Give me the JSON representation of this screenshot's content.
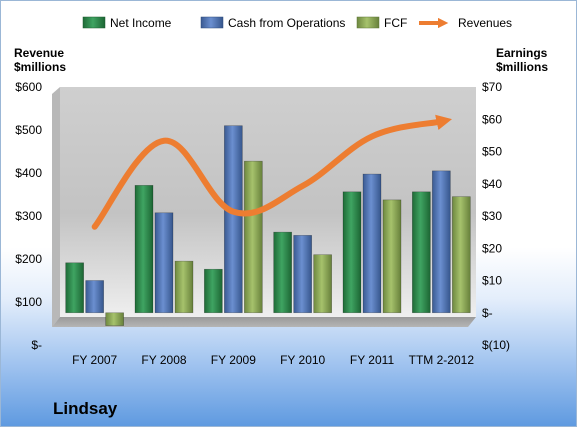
{
  "chart_data": {
    "type": "bar",
    "title": "Lindsay",
    "categories": [
      "FY 2007",
      "FY 2008",
      "FY 2009",
      "FY 2010",
      "FY 2011",
      "TTM 2-2012"
    ],
    "left_axis": {
      "label_line1": "Revenue",
      "label_line2": "$millions",
      "ticks": [
        "$-",
        "$100",
        "$200",
        "$300",
        "$400",
        "$500",
        "$600"
      ],
      "range": [
        0,
        600
      ]
    },
    "right_axis": {
      "label_line1": "Earnings",
      "label_line2": "$millions",
      "ticks": [
        "$(10)",
        "$-",
        "$10",
        "$20",
        "$30",
        "$40",
        "$50",
        "$60",
        "$70"
      ],
      "range": [
        -10,
        70
      ]
    },
    "series": [
      {
        "name": "Net Income",
        "axis": "right",
        "kind": "bar",
        "color": "#2e8b4e",
        "values": [
          15.5,
          39.5,
          13.5,
          25,
          37.5,
          37.5
        ]
      },
      {
        "name": "Cash from Operations",
        "axis": "right",
        "kind": "bar",
        "color": "#4f72b0",
        "values": [
          10,
          31,
          58,
          24,
          43,
          44
        ]
      },
      {
        "name": "FCF",
        "axis": "right",
        "kind": "bar",
        "color": "#8aa656",
        "values": [
          -4,
          16,
          47,
          18,
          35,
          36
        ]
      },
      {
        "name": "Revenues",
        "axis": "left",
        "kind": "line",
        "color": "#ed7d31",
        "values": [
          275,
          475,
          310,
          370,
          485,
          520
        ]
      }
    ],
    "legend_position": "top",
    "grid": false
  }
}
